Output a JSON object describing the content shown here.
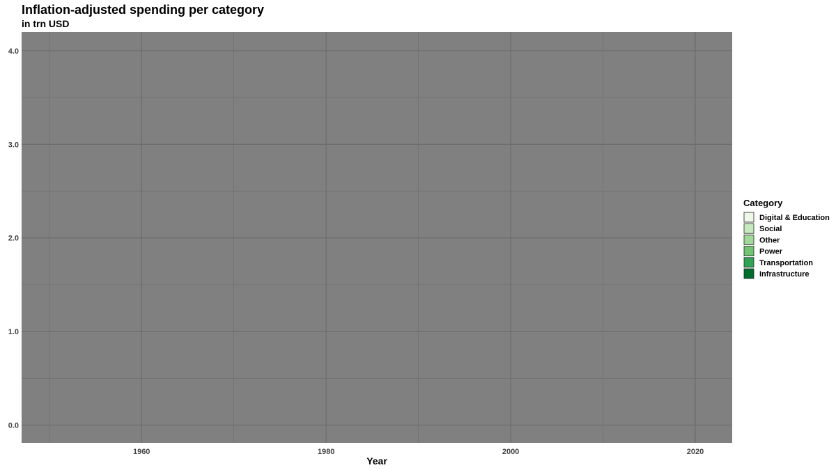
{
  "chart_data": {
    "type": "area",
    "title": "Inflation-adjusted spending per category",
    "subtitle": "in trn USD",
    "xlabel": "Year",
    "ylabel": "",
    "xlim": [
      1947,
      2024
    ],
    "ylim": [
      -0.19,
      4.2
    ],
    "x_ticks": [
      1960,
      1980,
      2000,
      2020
    ],
    "x_tick_labels": [
      "1960",
      "1980",
      "2000",
      "2020"
    ],
    "x_minor_ticks": [
      1950,
      1970,
      1990,
      2010
    ],
    "y_ticks": [
      0,
      1,
      2,
      3,
      4
    ],
    "y_tick_labels": [
      "0.0",
      "1.0",
      "2.0",
      "3.0",
      "4.0"
    ],
    "y_minor_ticks": [
      0.5,
      1.5,
      2.5,
      3.5
    ],
    "grid": true,
    "panel_color": "#808080",
    "grid_color": "#6b6b6b",
    "legend": {
      "title": "Category",
      "placement": "right",
      "items": [
        {
          "label": "Digital & Education",
          "color": "#edf8e9"
        },
        {
          "label": "Social",
          "color": "#c7e9c0"
        },
        {
          "label": "Other",
          "color": "#a1d99b"
        },
        {
          "label": "Power",
          "color": "#74c476"
        },
        {
          "label": "Transportation",
          "color": "#31a354"
        },
        {
          "label": "Infrastructure",
          "color": "#006d2c"
        }
      ]
    },
    "series": []
  }
}
